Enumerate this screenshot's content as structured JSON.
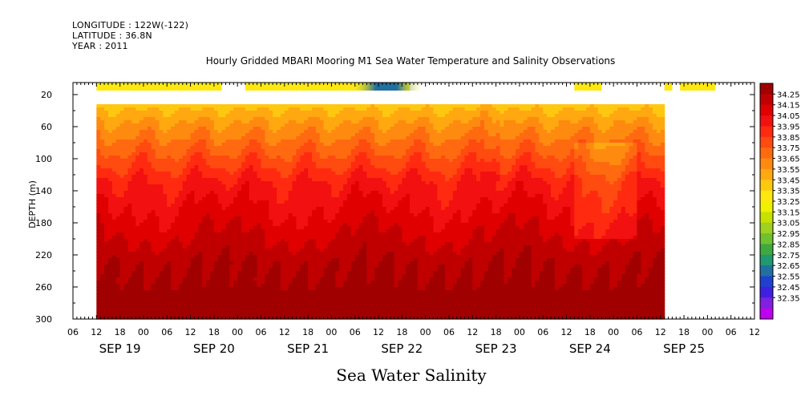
{
  "header": {
    "longitude": "LONGITUDE : 122W(-122)",
    "latitude": "LATITUDE : 36.8N",
    "year": "YEAR : 2011"
  },
  "chart_data": {
    "type": "heatmap",
    "title": "Hourly Gridded MBARI Mooring M1 Sea Water Temperature and Salinity Observations",
    "xlabel": "Sea Water Salinity",
    "ylabel": "DEPTH (m)",
    "x_range_hours": [
      0,
      174
    ],
    "x_hour_tick_labels": [
      "00",
      "06",
      "12",
      "18",
      "00",
      "06",
      "12",
      "18",
      "00",
      "06",
      "12",
      "18",
      "00",
      "06",
      "12",
      "18",
      "00",
      "06",
      "12",
      "18",
      "00",
      "06",
      "12",
      "18",
      "00",
      "06",
      "12",
      "18",
      "00",
      "06",
      "12",
      "18",
      "00",
      "06",
      "12",
      "18"
    ],
    "date_labels": [
      {
        "label": "SEP 19",
        "hour": 12
      },
      {
        "label": "SEP 20",
        "hour": 36
      },
      {
        "label": "SEP 21",
        "hour": 60
      },
      {
        "label": "SEP 22",
        "hour": 84
      },
      {
        "label": "SEP 23",
        "hour": 108
      },
      {
        "label": "SEP 24",
        "hour": 132
      },
      {
        "label": "SEP 25",
        "hour": 156
      }
    ],
    "y_range_m": [
      5,
      300
    ],
    "y_reversed": true,
    "y_tick_labels": [
      "20",
      "60",
      "100",
      "140",
      "180",
      "220",
      "260",
      "300"
    ],
    "y_tick_values": [
      20,
      60,
      100,
      140,
      180,
      220,
      260,
      300
    ],
    "colorbar": {
      "labels": [
        "34.25",
        "34.15",
        "34.05",
        "33.95",
        "33.85",
        "33.75",
        "33.65",
        "33.55",
        "33.45",
        "33.35",
        "33.25",
        "33.15",
        "33.05",
        "32.95",
        "32.85",
        "32.75",
        "32.65",
        "32.55",
        "32.45",
        "32.35"
      ],
      "colors": [
        "#a00000",
        "#c00000",
        "#e00000",
        "#f21010",
        "#ff2a10",
        "#ff4a10",
        "#ff6a10",
        "#ff8a10",
        "#ffa810",
        "#ffc810",
        "#ffe810",
        "#f0f000",
        "#c8e000",
        "#a0d020",
        "#70c030",
        "#40a840",
        "#209870",
        "#2070a0",
        "#2040d0",
        "#4020e0",
        "#8020e0",
        "#c000f0"
      ]
    },
    "surface_band": {
      "depth_range_m": [
        5,
        15
      ],
      "segments_hours": [
        [
          6,
          38
        ],
        [
          44,
          86
        ],
        [
          128,
          135
        ],
        [
          151,
          153
        ],
        [
          155,
          164
        ]
      ],
      "low_salinity_hours": [
        71,
        89
      ],
      "value_typical": 33.3,
      "value_min": 32.75
    },
    "profile": {
      "start_hour": 6,
      "end_hour": 151,
      "top_depth_m": 32,
      "depth_levels_m": [
        35,
        50,
        70,
        90,
        110,
        130,
        150,
        170,
        190,
        210,
        230,
        250,
        270,
        290
      ],
      "mean_salinity": [
        33.45,
        33.55,
        33.65,
        33.75,
        33.85,
        33.95,
        34.0,
        34.05,
        34.1,
        34.15,
        34.2,
        34.22,
        34.25,
        34.25
      ]
    }
  }
}
